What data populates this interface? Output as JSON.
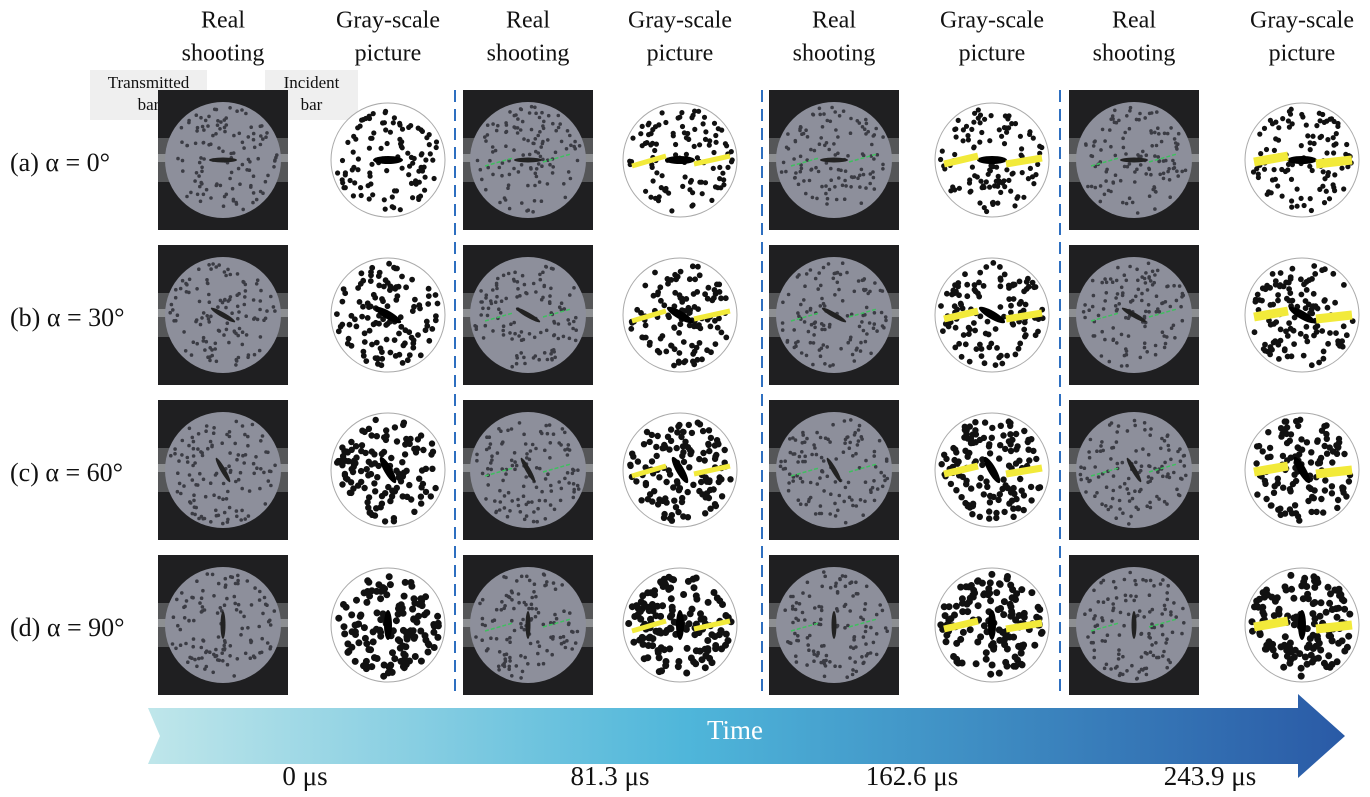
{
  "column_headers": [
    {
      "line1": "Real",
      "line2": "shooting"
    },
    {
      "line1": "Gray-scale",
      "line2": "picture"
    },
    {
      "line1": "Real",
      "line2": "shooting"
    },
    {
      "line1": "Gray-scale",
      "line2": "picture"
    },
    {
      "line1": "Real",
      "line2": "shooting"
    },
    {
      "line1": "Gray-scale",
      "line2": "picture"
    },
    {
      "line1": "Real",
      "line2": "shooting"
    },
    {
      "line1": "Gray-scale",
      "line2": "picture"
    }
  ],
  "annotations": {
    "transmitted_bar": {
      "line1": "Transmitted",
      "line2": "bar"
    },
    "incident_bar": {
      "line1": "Incident",
      "line2": "bar"
    }
  },
  "rows": [
    {
      "label": "(a) α = 0°"
    },
    {
      "label": "(b) α = 30°"
    },
    {
      "label": "(c) α = 60°"
    },
    {
      "label": "(d) α = 90°"
    }
  ],
  "time_arrow": {
    "label": "Time"
  },
  "time_labels": [
    "0 μs",
    "81.3 μs",
    "162.6 μs",
    "243.9 μs"
  ]
}
